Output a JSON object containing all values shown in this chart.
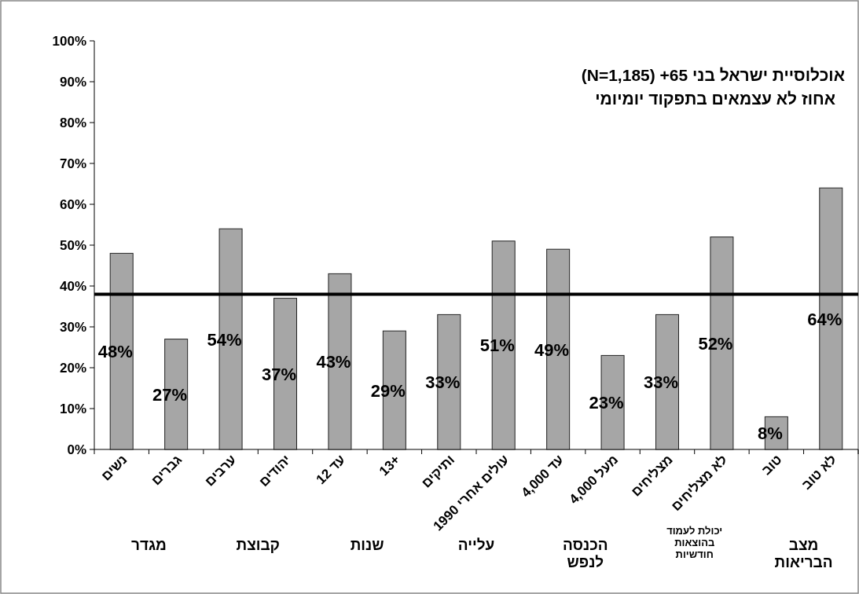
{
  "chart_data": {
    "type": "bar",
    "title": "אוכלוסיית ישראל בני 65+ (N=1,185)",
    "subtitle": "אחוז לא עצמאים בתפקוד יומיומי",
    "categories": [
      "נשים",
      "גברים",
      "ערבים",
      "יהודים",
      "עד 12",
      "13+",
      "ותיקים",
      "עולים אחרי 1990",
      "עד 4,000",
      "מעל 4,000",
      "מצליחים",
      "לא מצליחים",
      "טוב",
      "לא טוב"
    ],
    "values": [
      48,
      27,
      54,
      37,
      43,
      29,
      33,
      51,
      49,
      23,
      33,
      52,
      8,
      64
    ],
    "color": "#a6a6a6",
    "value_labels": [
      "48%",
      "27%",
      "54%",
      "37%",
      "43%",
      "29%",
      "33%",
      "51%",
      "49%",
      "23%",
      "33%",
      "52%",
      "8%",
      "64%"
    ],
    "ylim": [
      0,
      100
    ],
    "yticks": [
      {
        "value": 0,
        "label": "0%"
      },
      {
        "value": 10,
        "label": "10%"
      },
      {
        "value": 20,
        "label": "20%"
      },
      {
        "value": 30,
        "label": "30%"
      },
      {
        "value": 40,
        "label": "40%"
      },
      {
        "value": 50,
        "label": "50%"
      },
      {
        "value": 60,
        "label": "60%"
      },
      {
        "value": 70,
        "label": "70%"
      },
      {
        "value": 80,
        "label": "80%"
      },
      {
        "value": 90,
        "label": "90%"
      },
      {
        "value": 100,
        "label": "100%"
      }
    ],
    "ref_lines": [
      {
        "axis": "y",
        "value": 38,
        "color": "#000000"
      }
    ],
    "annotations": [
      "מגדר",
      "קבוצת",
      "שנות",
      "עלייה",
      "הכנסה לנפש",
      "יכולת לעמוד בהוצאות חודשיות",
      "מצב הבריאות"
    ],
    "grid": false
  }
}
